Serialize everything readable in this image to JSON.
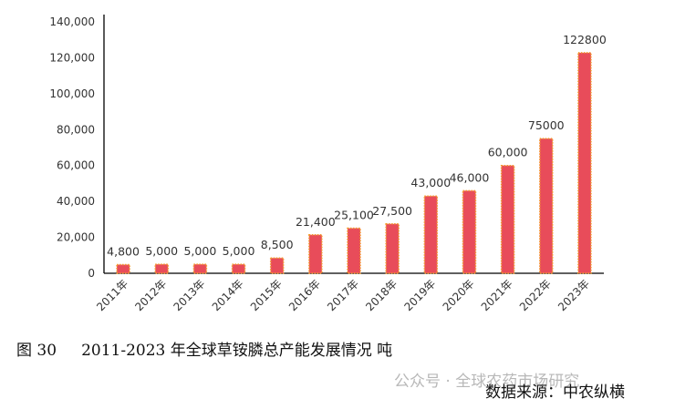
{
  "chart_data": {
    "type": "bar",
    "title": "",
    "xlabel": "",
    "ylabel": "",
    "categories": [
      "2011年",
      "2012年",
      "2013年",
      "2014年",
      "2015年",
      "2016年",
      "2017年",
      "2018年",
      "2019年",
      "2020年",
      "2021年",
      "2022年",
      "2023年"
    ],
    "values": [
      4800,
      5000,
      5000,
      5000,
      8500,
      21400,
      25100,
      27500,
      43000,
      46000,
      60000,
      75000,
      122800
    ],
    "data_labels": [
      "4,800",
      "5,000",
      "5,000",
      "5,000",
      "8,500",
      "21,400",
      "25,100",
      "27,500",
      "43,000",
      "46,000",
      "60,000",
      "75000",
      "122800"
    ],
    "ylim": [
      0,
      140000
    ],
    "yticks": [
      "0",
      "20,000",
      "40,000",
      "60,000",
      "80,000",
      "100,000",
      "120,000",
      "140,000"
    ],
    "grid": false,
    "colors": {
      "bar": "#e84c5a",
      "bar_border": "#f39a2b"
    }
  },
  "caption": {
    "number": "图 30",
    "text": "2011-2023 年全球草铵膦总产能发展情况 吨"
  },
  "watermark": "公众号 · 全球农药市场研究",
  "source": "数据来源：中农纵横"
}
